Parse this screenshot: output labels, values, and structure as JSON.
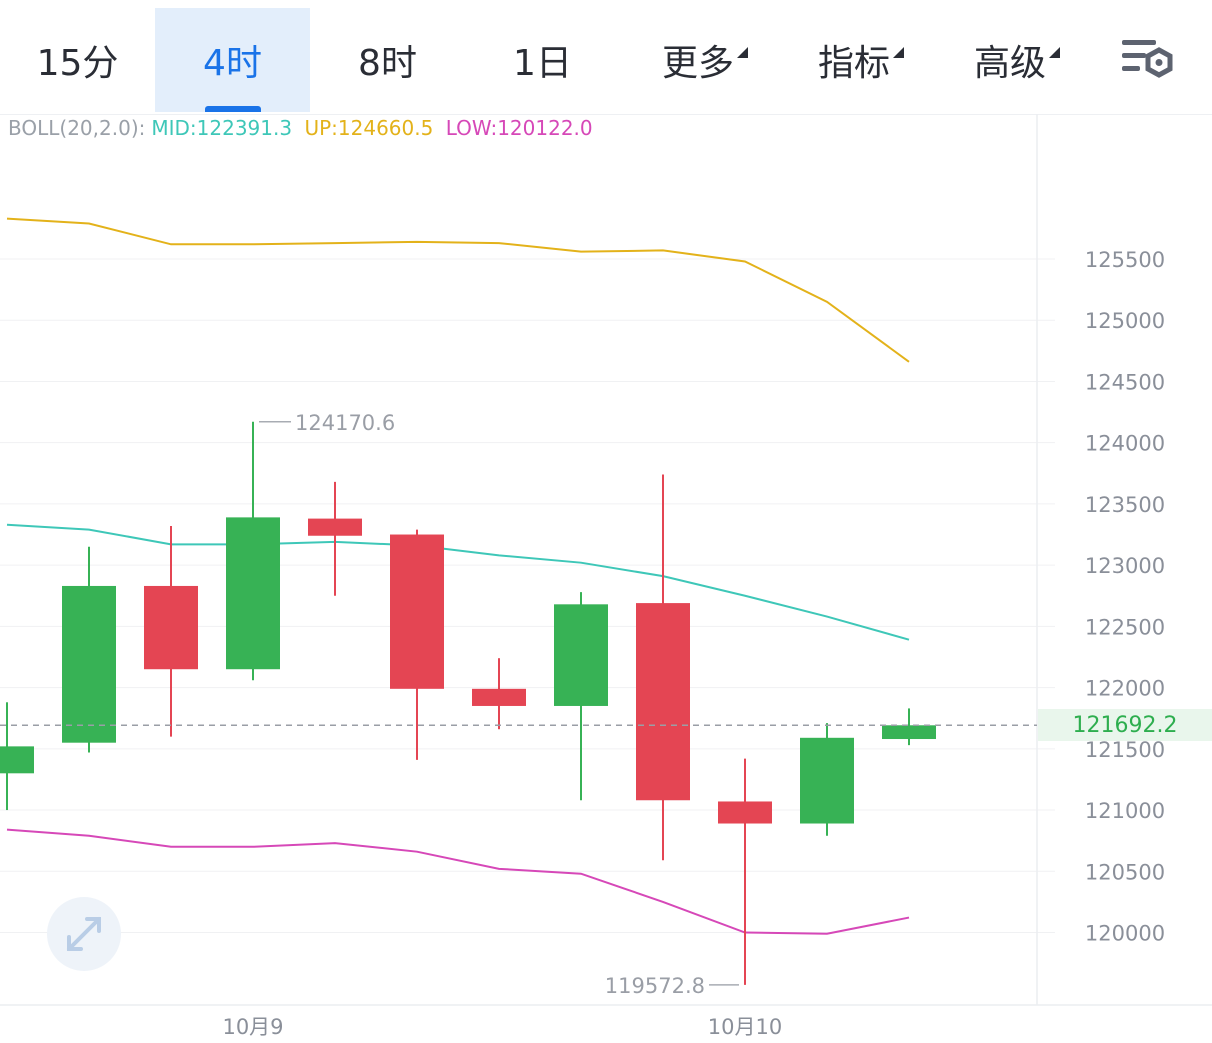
{
  "tabs": [
    {
      "label": "15分",
      "active": false,
      "dropdown": false
    },
    {
      "label": "4时",
      "active": true,
      "dropdown": false
    },
    {
      "label": "8时",
      "active": false,
      "dropdown": false
    },
    {
      "label": "1日",
      "active": false,
      "dropdown": false
    },
    {
      "label": "更多",
      "active": false,
      "dropdown": true
    },
    {
      "label": "指标",
      "active": false,
      "dropdown": true
    },
    {
      "label": "高级",
      "active": false,
      "dropdown": true
    }
  ],
  "settings_icon": "chart-settings-icon",
  "expand_icon": "expand-arrows-icon",
  "indicator": {
    "name": "BOLL(20,2.0):",
    "mid": "MID:122391.3",
    "up": "UP:124660.5",
    "low": "LOW:120122.0"
  },
  "colors": {
    "up_candle": "#37b255",
    "down_candle": "#e44553",
    "mid_line": "#3ec7b8",
    "up_line": "#e3b21a",
    "low_line": "#d648b8",
    "active_tab": "#1a73e8",
    "axis_text": "#8a8f99"
  },
  "chart_data": {
    "type": "candlestick",
    "timeframe": "4时",
    "x_labels": [
      "10月9",
      "10月10"
    ],
    "y_ticks": [
      120000,
      120500,
      121000,
      121500,
      122000,
      122500,
      123000,
      123500,
      124000,
      124500,
      125000,
      125500
    ],
    "y_range": [
      119300,
      126500
    ],
    "candles": [
      {
        "open": 121300,
        "high": 121880,
        "low": 121000,
        "close": 121520
      },
      {
        "open": 121550,
        "high": 123150,
        "low": 121470,
        "close": 122830
      },
      {
        "open": 122830,
        "high": 123320,
        "low": 121600,
        "close": 122150
      },
      {
        "open": 122150,
        "high": 124170.6,
        "low": 122060,
        "close": 123390
      },
      {
        "open": 123380,
        "high": 123680,
        "low": 122750,
        "close": 123240
      },
      {
        "open": 123250,
        "high": 123290,
        "low": 121410,
        "close": 121990
      },
      {
        "open": 121990,
        "high": 122240,
        "low": 121660,
        "close": 121850
      },
      {
        "open": 121850,
        "high": 122780,
        "low": 121080,
        "close": 122680
      },
      {
        "open": 122690,
        "high": 123740,
        "low": 120590,
        "close": 121080
      },
      {
        "open": 121070,
        "high": 121420,
        "low": 119572.8,
        "close": 120890
      },
      {
        "open": 120890,
        "high": 121710,
        "low": 120790,
        "close": 121590
      },
      {
        "open": 121580,
        "high": 121830,
        "low": 121530,
        "close": 121692.2
      }
    ],
    "boll_mid": [
      123330,
      123290,
      123170,
      123170,
      123190,
      123160,
      123080,
      123020,
      122910,
      122750,
      122580,
      122391.3
    ],
    "boll_up": [
      125830,
      125790,
      125620,
      125620,
      125630,
      125640,
      125630,
      125560,
      125570,
      125480,
      125150,
      124660.5
    ],
    "boll_low": [
      120840,
      120790,
      120700,
      120700,
      120730,
      120660,
      120520,
      120480,
      120250,
      120000,
      119990,
      120122.0
    ],
    "high_annotation": "124170.6",
    "low_annotation": "119572.8",
    "last_price": "121692.2",
    "grid": true
  }
}
